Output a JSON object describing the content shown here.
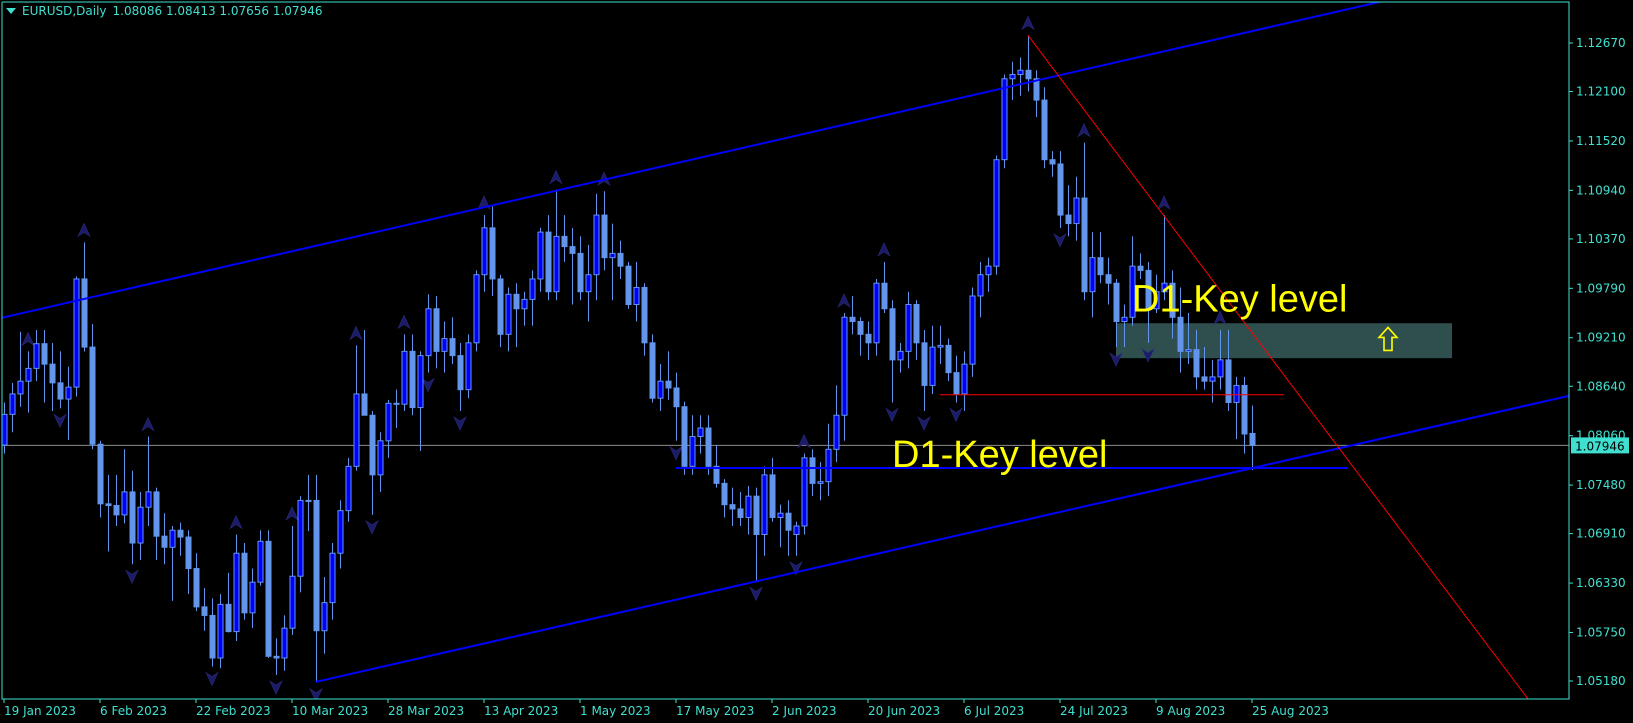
{
  "header": {
    "symbol_timeframe": "EURUSD,Daily",
    "ohlc": "1.08086 1.08413 1.07656 1.07946",
    "menu_icon": "triangle-down-icon"
  },
  "colors": {
    "background": "#000000",
    "axis": "#40e0d0",
    "bull_body": "#0000ff",
    "bear_body": "#6495ed",
    "wick": "#6495ed",
    "channel": "#0000ff",
    "trendline": "#ff0000",
    "key_level_text": "#ffff00",
    "zone": "#2f4f4f",
    "fractal": "#1c1c66",
    "bid_line": "#8c8c8c"
  },
  "chart_data": {
    "type": "candlestick",
    "symbol": "EURUSD",
    "timeframe": "Daily",
    "ylim": [
      1.0518,
      1.1267
    ],
    "price_ticks": [
      "1.12670",
      "1.12100",
      "1.11520",
      "1.10940",
      "1.10370",
      "1.09790",
      "1.09210",
      "1.08640",
      "1.08060",
      "1.07480",
      "1.06910",
      "1.06330",
      "1.05750",
      "1.05180"
    ],
    "date_labels": [
      "19 Jan 2023",
      "6 Feb 2023",
      "22 Feb 2023",
      "10 Mar 2023",
      "28 Mar 2023",
      "13 Apr 2023",
      "1 May 2023",
      "17 May 2023",
      "2 Jun 2023",
      "20 Jun 2023",
      "6 Jul 2023",
      "24 Jul 2023",
      "9 Aug 2023",
      "25 Aug 2023"
    ],
    "first_date": "2023-01-19",
    "bid": {
      "price": 1.07946,
      "label": "1.07946"
    },
    "candles": [
      [
        1.0795,
        1.0845,
        1.0785,
        1.0831
      ],
      [
        1.0831,
        1.0868,
        1.081,
        1.0855
      ],
      [
        1.0855,
        1.0928,
        1.084,
        1.087
      ],
      [
        1.087,
        1.0905,
        1.0833,
        1.0885
      ],
      [
        1.0885,
        1.093,
        1.087,
        1.0914
      ],
      [
        1.0914,
        1.093,
        1.0845,
        1.089
      ],
      [
        1.089,
        1.0915,
        1.0835,
        1.0868
      ],
      [
        1.0868,
        1.0905,
        1.0838,
        1.0849
      ],
      [
        1.0849,
        1.0887,
        1.0801,
        1.0863
      ],
      [
        1.0863,
        1.0993,
        1.0852,
        1.099
      ],
      [
        1.099,
        1.1033,
        1.0905,
        1.091
      ],
      [
        1.091,
        1.0937,
        1.079,
        1.0796
      ],
      [
        1.0796,
        1.08,
        1.071,
        1.0726
      ],
      [
        1.0726,
        1.076,
        1.067,
        1.0724
      ],
      [
        1.0724,
        1.076,
        1.07,
        1.0713
      ],
      [
        1.0713,
        1.079,
        1.0703,
        1.074
      ],
      [
        1.074,
        1.0765,
        1.0655,
        1.068
      ],
      [
        1.068,
        1.074,
        1.066,
        1.0722
      ],
      [
        1.0722,
        1.0805,
        1.07,
        1.074
      ],
      [
        1.074,
        1.0745,
        1.066,
        1.0688
      ],
      [
        1.0688,
        1.0715,
        1.0655,
        1.0675
      ],
      [
        1.0675,
        1.07,
        1.0612,
        1.0695
      ],
      [
        1.0695,
        1.0704,
        1.0665,
        1.0687
      ],
      [
        1.0687,
        1.0695,
        1.062,
        1.065
      ],
      [
        1.065,
        1.0668,
        1.06,
        1.0605
      ],
      [
        1.0605,
        1.0627,
        1.0577,
        1.0595
      ],
      [
        1.0595,
        1.0615,
        1.0535,
        1.0545
      ],
      [
        1.0545,
        1.062,
        1.0533,
        1.0608
      ],
      [
        1.0608,
        1.0645,
        1.0575,
        1.0576
      ],
      [
        1.0576,
        1.069,
        1.0565,
        1.0668
      ],
      [
        1.0668,
        1.068,
        1.059,
        1.0598
      ],
      [
        1.0598,
        1.065,
        1.058,
        1.0634
      ],
      [
        1.0634,
        1.0695,
        1.063,
        1.0682
      ],
      [
        1.0682,
        1.0695,
        1.0545,
        1.0547
      ],
      [
        1.0547,
        1.0568,
        1.0525,
        1.0545
      ],
      [
        1.0545,
        1.0595,
        1.053,
        1.058
      ],
      [
        1.058,
        1.07,
        1.0572,
        1.0641
      ],
      [
        1.0641,
        1.0735,
        1.0622,
        1.073
      ],
      [
        1.073,
        1.076,
        1.0694,
        1.073
      ],
      [
        1.073,
        1.076,
        1.0516,
        1.0577
      ],
      [
        1.0577,
        1.064,
        1.055,
        1.061
      ],
      [
        1.061,
        1.068,
        1.059,
        1.0668
      ],
      [
        1.0668,
        1.073,
        1.065,
        1.0718
      ],
      [
        1.0718,
        1.078,
        1.0705,
        1.077
      ],
      [
        1.077,
        1.0912,
        1.0765,
        1.0855
      ],
      [
        1.0855,
        1.093,
        1.083,
        1.083
      ],
      [
        1.083,
        1.0835,
        1.0713,
        1.076
      ],
      [
        1.076,
        1.081,
        1.074,
        1.08
      ],
      [
        1.08,
        1.0848,
        1.078,
        1.0844
      ],
      [
        1.0844,
        1.086,
        1.0815,
        1.0843
      ],
      [
        1.0843,
        1.0925,
        1.0835,
        1.0905
      ],
      [
        1.0905,
        1.0925,
        1.083,
        1.0839
      ],
      [
        1.0839,
        1.0905,
        1.0788,
        1.09
      ],
      [
        1.09,
        1.0972,
        1.088,
        1.0955
      ],
      [
        1.0955,
        1.097,
        1.0885,
        1.0905
      ],
      [
        1.0905,
        1.094,
        1.088,
        1.092
      ],
      [
        1.092,
        1.0945,
        1.089,
        1.09
      ],
      [
        1.09,
        1.0915,
        1.0835,
        1.086
      ],
      [
        1.086,
        1.0925,
        1.085,
        1.0915
      ],
      [
        1.0915,
        1.1,
        1.0905,
        1.0995
      ],
      [
        1.0995,
        1.1065,
        1.0975,
        1.105
      ],
      [
        1.105,
        1.1075,
        1.097,
        1.099
      ],
      [
        1.099,
        1.0995,
        1.091,
        1.0925
      ],
      [
        1.0925,
        1.098,
        1.0905,
        1.0972
      ],
      [
        1.0972,
        1.0985,
        1.091,
        1.0955
      ],
      [
        1.0955,
        1.0975,
        1.0935,
        1.0966
      ],
      [
        1.0966,
        1.1,
        1.0935,
        1.099
      ],
      [
        1.099,
        1.105,
        1.0975,
        1.1045
      ],
      [
        1.1045,
        1.1065,
        1.0965,
        1.0975
      ],
      [
        1.0975,
        1.1095,
        1.0965,
        1.104
      ],
      [
        1.104,
        1.1065,
        1.101,
        1.1028
      ],
      [
        1.1028,
        1.105,
        1.096,
        1.102
      ],
      [
        1.102,
        1.104,
        1.0965,
        1.0975
      ],
      [
        1.0975,
        1.103,
        1.094,
        1.0995
      ],
      [
        1.0995,
        1.109,
        1.0965,
        1.1065
      ],
      [
        1.1065,
        1.1093,
        1.1,
        1.1015
      ],
      [
        1.1015,
        1.1055,
        1.0965,
        1.102
      ],
      [
        1.102,
        1.1035,
        1.099,
        1.1005
      ],
      [
        1.1005,
        1.101,
        1.0955,
        1.096
      ],
      [
        1.096,
        1.101,
        1.094,
        1.098
      ],
      [
        1.098,
        1.0985,
        1.09,
        1.0915
      ],
      [
        1.0915,
        1.0925,
        1.0845,
        1.085
      ],
      [
        1.085,
        1.089,
        1.0835,
        1.087
      ],
      [
        1.087,
        1.0905,
        1.0848,
        1.0862
      ],
      [
        1.0862,
        1.088,
        1.08,
        1.084
      ],
      [
        1.084,
        1.0846,
        1.076,
        1.077
      ],
      [
        1.077,
        1.083,
        1.076,
        1.0805
      ],
      [
        1.0805,
        1.083,
        1.0785,
        1.0815
      ],
      [
        1.0815,
        1.083,
        1.076,
        1.077
      ],
      [
        1.077,
        1.0795,
        1.0745,
        1.075
      ],
      [
        1.075,
        1.0755,
        1.071,
        1.0725
      ],
      [
        1.0725,
        1.0745,
        1.07,
        1.072
      ],
      [
        1.072,
        1.074,
        1.07,
        1.071
      ],
      [
        1.071,
        1.0747,
        1.069,
        1.0735
      ],
      [
        1.0735,
        1.0745,
        1.0635,
        1.069
      ],
      [
        1.069,
        1.077,
        1.0665,
        1.076
      ],
      [
        1.076,
        1.078,
        1.0705,
        1.071
      ],
      [
        1.071,
        1.0725,
        1.0675,
        1.0715
      ],
      [
        1.0715,
        1.073,
        1.0665,
        1.0695
      ],
      [
        1.069,
        1.0705,
        1.0665,
        1.07
      ],
      [
        1.07,
        1.0785,
        1.069,
        1.078
      ],
      [
        1.078,
        1.079,
        1.0735,
        1.075
      ],
      [
        1.075,
        1.0775,
        1.073,
        1.0752
      ],
      [
        1.0752,
        1.082,
        1.0735,
        1.079
      ],
      [
        1.079,
        1.0865,
        1.0775,
        1.083
      ],
      [
        1.083,
        1.095,
        1.08,
        1.0945
      ],
      [
        1.0945,
        1.097,
        1.0925,
        1.094
      ],
      [
        1.094,
        1.0945,
        1.09,
        1.0925
      ],
      [
        1.0925,
        1.094,
        1.0895,
        1.0915
      ],
      [
        1.0915,
        1.099,
        1.09,
        1.0985
      ],
      [
        1.0985,
        1.101,
        1.095,
        1.0955
      ],
      [
        1.0955,
        1.0965,
        1.0845,
        1.0895
      ],
      [
        1.0895,
        1.0915,
        1.088,
        1.0905
      ],
      [
        1.0905,
        1.0975,
        1.0885,
        1.096
      ],
      [
        1.096,
        1.0965,
        1.0895,
        1.0915
      ],
      [
        1.0915,
        1.093,
        1.0835,
        1.0865
      ],
      [
        1.0865,
        1.0935,
        1.0855,
        1.091
      ],
      [
        1.091,
        1.0935,
        1.089,
        1.0912
      ],
      [
        1.0912,
        1.092,
        1.087,
        1.088
      ],
      [
        1.088,
        1.09,
        1.0845,
        1.0855
      ],
      [
        1.0855,
        1.0905,
        1.0835,
        1.089
      ],
      [
        1.089,
        1.098,
        1.0875,
        1.097
      ],
      [
        1.097,
        1.101,
        1.0945,
        1.0995
      ],
      [
        1.0995,
        1.1015,
        1.0975,
        1.1005
      ],
      [
        1.1005,
        1.1135,
        1.0995,
        1.113
      ],
      [
        1.113,
        1.123,
        1.112,
        1.1225
      ],
      [
        1.1225,
        1.1245,
        1.12,
        1.123
      ],
      [
        1.123,
        1.125,
        1.1205,
        1.1235
      ],
      [
        1.1235,
        1.1276,
        1.121,
        1.1225
      ],
      [
        1.1225,
        1.1235,
        1.118,
        1.12
      ],
      [
        1.12,
        1.1215,
        1.112,
        1.113
      ],
      [
        1.113,
        1.114,
        1.111,
        1.1125
      ],
      [
        1.1125,
        1.114,
        1.105,
        1.1065
      ],
      [
        1.1065,
        1.11,
        1.104,
        1.1055
      ],
      [
        1.1055,
        1.111,
        1.1035,
        1.1085
      ],
      [
        1.1085,
        1.115,
        1.0965,
        1.0975
      ],
      [
        1.0975,
        1.1045,
        1.0945,
        1.1015
      ],
      [
        1.1015,
        1.1045,
        1.0985,
        1.0995
      ],
      [
        1.0995,
        1.1015,
        1.096,
        1.0985
      ],
      [
        1.0985,
        1.099,
        1.091,
        1.094
      ],
      [
        1.094,
        1.096,
        1.091,
        1.0945
      ],
      [
        1.0945,
        1.104,
        1.0935,
        1.1005
      ],
      [
        1.1005,
        1.102,
        1.099,
        1.1
      ],
      [
        1.1,
        1.101,
        1.0915,
        1.0955
      ],
      [
        1.0955,
        1.0995,
        1.095,
        1.0975
      ],
      [
        1.0975,
        1.1065,
        1.0965,
        1.0985
      ],
      [
        1.0985,
        1.1,
        1.092,
        1.0945
      ],
      [
        1.0945,
        1.098,
        1.088,
        1.0905
      ],
      [
        1.0905,
        1.095,
        1.089,
        1.0907
      ],
      [
        1.0907,
        1.093,
        1.086,
        1.0875
      ],
      [
        1.0875,
        1.091,
        1.086,
        1.087
      ],
      [
        1.087,
        1.0895,
        1.0845,
        1.0875
      ],
      [
        1.0875,
        1.093,
        1.086,
        1.0895
      ],
      [
        1.0895,
        1.093,
        1.0835,
        1.0845
      ],
      [
        1.0845,
        1.0875,
        1.0802,
        1.0865
      ],
      [
        1.0865,
        1.0875,
        1.0785,
        1.0808
      ],
      [
        1.08086,
        1.08413,
        1.07656,
        1.07946
      ]
    ],
    "fractals_up": [
      3,
      10,
      18,
      29,
      36,
      44,
      50,
      60,
      69,
      75,
      100,
      105,
      110,
      128,
      135,
      145,
      152
    ],
    "fractals_down": [
      7,
      16,
      26,
      34,
      39,
      46,
      53,
      57,
      84,
      94,
      99,
      111,
      115,
      119,
      132,
      139,
      143
    ],
    "objects": {
      "upper_channel": {
        "from": [
          "2023-01-19",
          1.0945
        ],
        "to": [
          "2023-08-17",
          1.1268
        ],
        "extend": "both"
      },
      "lower_channel": {
        "from": [
          "2023-03-15",
          1.0517
        ],
        "to": [
          "2023-08-17",
          1.0755
        ],
        "extend": "right"
      },
      "down_trendline": {
        "from": [
          "2023-07-18",
          1.1276
        ],
        "to": [
          "2023-08-25",
          1.0927
        ],
        "extend": "right"
      },
      "red_level": {
        "from": "2023-07-03",
        "to": "2023-08-31",
        "price": 1.0854
      },
      "blue_level": {
        "from": "2023-05-17",
        "to": "2023-09-12",
        "price": 1.0768
      },
      "key_zone": {
        "from": "2023-08-02",
        "to": "2023-09-29",
        "top": 1.0938,
        "bottom": 1.0897
      },
      "up_arrow": {
        "date": "2023-09-19",
        "price": 1.0919,
        "icon": "arrow-up-outline-icon"
      },
      "label_upper": {
        "text": "D1-Key level",
        "date": "2023-08-04",
        "price": 1.0952
      },
      "label_lower": {
        "text": "D1-Key level",
        "date": "2023-06-23",
        "price": 1.0769
      }
    }
  }
}
